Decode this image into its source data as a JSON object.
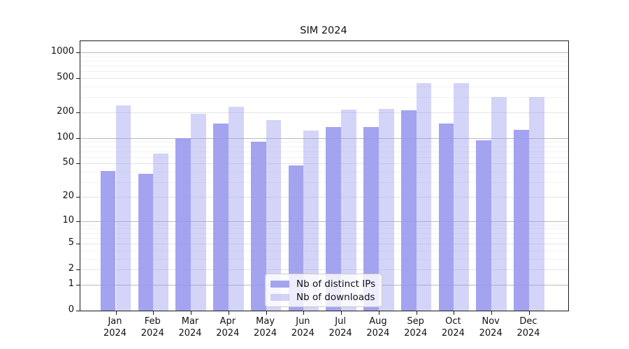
{
  "figure": {
    "title": "SIM 2024"
  },
  "chart_data": {
    "type": "bar",
    "title": "SIM 2024",
    "categories": [
      "Jan 2024",
      "Feb 2024",
      "Mar 2024",
      "Apr 2024",
      "May 2024",
      "Jun 2024",
      "Jul 2024",
      "Aug 2024",
      "Sep 2024",
      "Oct 2024",
      "Nov 2024",
      "Dec 2024"
    ],
    "x_tick_month_line": [
      "Jan",
      "Feb",
      "Mar",
      "Apr",
      "May",
      "Jun",
      "Jul",
      "Aug",
      "Sep",
      "Oct",
      "Nov",
      "Dec"
    ],
    "x_tick_year_line": "2024",
    "series": [
      {
        "name": "Nb of distinct IPs",
        "values": [
          41,
          38,
          100,
          147,
          90,
          48,
          136,
          134,
          213,
          147,
          95,
          124
        ],
        "color": "#9999ee",
        "alpha": 0.9
      },
      {
        "name": "Nb of downloads",
        "values": [
          240,
          66,
          193,
          233,
          164,
          123,
          217,
          220,
          438,
          438,
          300,
          300
        ],
        "color": "#9999ee",
        "alpha": 0.42
      }
    ],
    "yscale": "log10(value+1)",
    "y_tick_values": [
      0,
      1,
      2,
      5,
      10,
      20,
      50,
      100,
      200,
      500,
      1000
    ],
    "ylim": [
      0,
      1350
    ],
    "grid": true,
    "legend": {
      "labels": [
        "Nb of distinct IPs",
        "Nb of downloads"
      ],
      "position": "lower center"
    }
  }
}
